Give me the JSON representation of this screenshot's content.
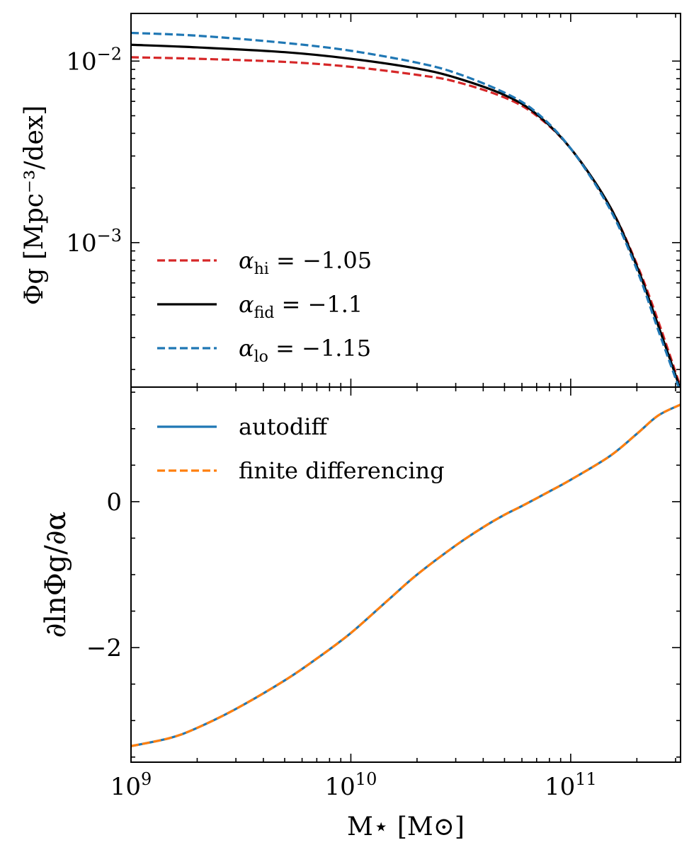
{
  "chart_data": [
    {
      "type": "line",
      "panel": "top",
      "xscale": "log",
      "yscale": "log",
      "xlim": [
        1000000000.0,
        316000000000.0
      ],
      "ylim": [
        0.00016,
        0.0183
      ],
      "ylabel": "Φg [Mpc⁻³/dex]",
      "ytick_labels": [
        {
          "value": 0.01,
          "base": "10",
          "exp": "−2"
        },
        {
          "value": 0.001,
          "base": "10",
          "exp": "−3"
        }
      ],
      "legend_position": "lower-left",
      "series": [
        {
          "name": "αhi = −1.05",
          "label_main": "α",
          "label_sub": "hi",
          "label_rest": " = −1.05",
          "color": "#d62728",
          "dash": "dashed",
          "x": [
            1000000000.0,
            2000000000.0,
            5000000000.0,
            10000000000.0,
            20000000000.0,
            30000000000.0,
            50000000000.0,
            70000000000.0,
            100000000000.0,
            150000000000.0,
            200000000000.0,
            250000000000.0,
            316000000000.0
          ],
          "y": [
            0.0105,
            0.0103,
            0.0099,
            0.0093,
            0.0084,
            0.0077,
            0.0063,
            0.005,
            0.0033,
            0.0016,
            0.00076,
            0.00037,
            0.00016
          ]
        },
        {
          "name": "αfid = −1.1",
          "label_main": "α",
          "label_sub": "fid",
          "label_rest": " = −1.1",
          "color": "#000000",
          "dash": "solid",
          "x": [
            1000000000.0,
            2000000000.0,
            5000000000.0,
            10000000000.0,
            20000000000.0,
            30000000000.0,
            50000000000.0,
            70000000000.0,
            100000000000.0,
            150000000000.0,
            200000000000.0,
            250000000000.0,
            316000000000.0
          ],
          "y": [
            0.0123,
            0.0119,
            0.0112,
            0.0103,
            0.0091,
            0.0081,
            0.0065,
            0.0051,
            0.0033,
            0.0016,
            0.00074,
            0.00035,
            0.000155
          ]
        },
        {
          "name": "αlo = −1.15",
          "label_main": "α",
          "label_sub": "lo",
          "label_rest": " = −1.15",
          "color": "#1f77b4",
          "dash": "dashed",
          "x": [
            1000000000.0,
            2000000000.0,
            5000000000.0,
            10000000000.0,
            20000000000.0,
            30000000000.0,
            50000000000.0,
            70000000000.0,
            100000000000.0,
            150000000000.0,
            200000000000.0,
            250000000000.0,
            316000000000.0
          ],
          "y": [
            0.0143,
            0.0138,
            0.0126,
            0.0114,
            0.0098,
            0.0086,
            0.0067,
            0.0052,
            0.0033,
            0.00155,
            0.00071,
            0.00033,
            0.00015
          ]
        }
      ]
    },
    {
      "type": "line",
      "panel": "bottom",
      "xscale": "log",
      "xlim": [
        1000000000.0,
        316000000000.0
      ],
      "ylim": [
        -3.57,
        1.57
      ],
      "ylabel": "∂lnΦg/∂α",
      "xlabel": "M⋆ [M⊙]",
      "yticks": [
        0,
        -2
      ],
      "ytick_labels": [
        "0",
        "−2"
      ],
      "xtick_labels": [
        {
          "value": 1000000000.0,
          "base": "10",
          "exp": "9"
        },
        {
          "value": 10000000000.0,
          "base": "10",
          "exp": "10"
        },
        {
          "value": 100000000000.0,
          "base": "10",
          "exp": "11"
        }
      ],
      "legend_position": "top-left",
      "series": [
        {
          "name": "autodiff",
          "color": "#1f77b4",
          "dash": "solid",
          "x": [
            1000000000.0,
            1500000000.0,
            2000000000.0,
            3000000000.0,
            5000000000.0,
            7000000000.0,
            10000000000.0,
            15000000000.0,
            20000000000.0,
            30000000000.0,
            40000000000.0,
            50000000000.0,
            60000000000.0,
            80000000000.0,
            100000000000.0,
            150000000000.0,
            200000000000.0,
            250000000000.0,
            316000000000.0
          ],
          "y": [
            -3.35,
            -3.24,
            -3.1,
            -2.84,
            -2.45,
            -2.15,
            -1.8,
            -1.33,
            -1.0,
            -0.6,
            -0.35,
            -0.18,
            -0.06,
            0.14,
            0.3,
            0.62,
            0.93,
            1.18,
            1.33
          ]
        },
        {
          "name": "finite differencing",
          "color": "#ff7f0e",
          "dash": "dashed",
          "x": [
            1000000000.0,
            1500000000.0,
            2000000000.0,
            3000000000.0,
            5000000000.0,
            7000000000.0,
            10000000000.0,
            15000000000.0,
            20000000000.0,
            30000000000.0,
            40000000000.0,
            50000000000.0,
            60000000000.0,
            80000000000.0,
            100000000000.0,
            150000000000.0,
            200000000000.0,
            250000000000.0,
            316000000000.0
          ],
          "y": [
            -3.35,
            -3.24,
            -3.1,
            -2.84,
            -2.45,
            -2.15,
            -1.8,
            -1.33,
            -1.0,
            -0.6,
            -0.35,
            -0.18,
            -0.06,
            0.14,
            0.3,
            0.62,
            0.93,
            1.18,
            1.33
          ]
        }
      ]
    }
  ]
}
